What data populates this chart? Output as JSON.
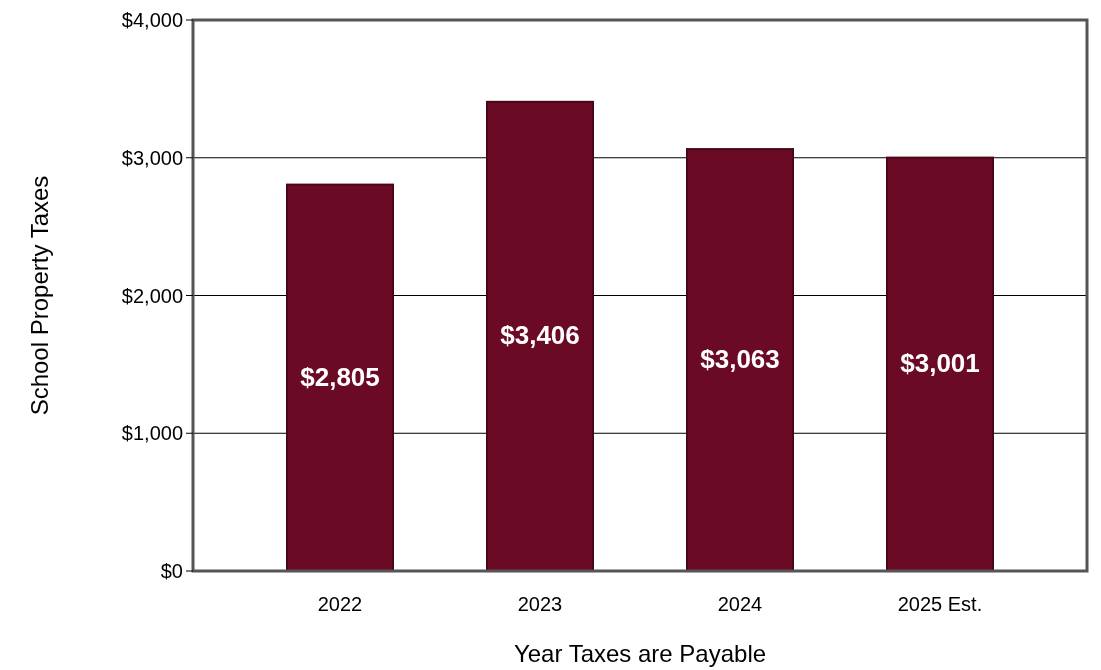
{
  "chart_data": {
    "type": "bar",
    "xlabel": "Year Taxes are Payable",
    "ylabel": "School Property Taxes",
    "categories": [
      "2022",
      "2023",
      "2024",
      "2025 Est."
    ],
    "values": [
      2805,
      3406,
      3063,
      3001
    ],
    "value_labels": [
      "$2,805",
      "$3,406",
      "$3,063",
      "$3,001"
    ],
    "color": "#6b0a25",
    "ylim": [
      0,
      4000
    ],
    "yticks": [
      {
        "value": 0,
        "label": "$0"
      },
      {
        "value": 1000,
        "label": "$1,000"
      },
      {
        "value": 2000,
        "label": "$2,000"
      },
      {
        "value": 3000,
        "label": "$3,000"
      },
      {
        "value": 4000,
        "label": "$4,000"
      }
    ],
    "grid": true
  }
}
